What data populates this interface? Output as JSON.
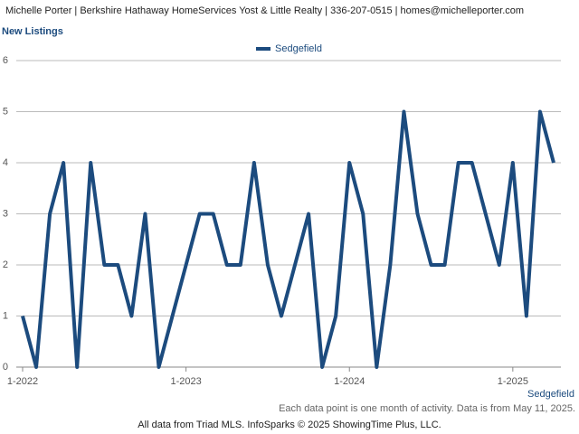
{
  "header": "Michelle Porter | Berkshire Hathaway HomeServices Yost & Little Realty | 336-207-0515 | homes@michelleporter.com",
  "chart_data": {
    "type": "line",
    "title": "New Listings",
    "categories": [
      "1-2022",
      null,
      null,
      null,
      null,
      null,
      null,
      null,
      null,
      null,
      null,
      null,
      "1-2023",
      null,
      null,
      null,
      null,
      null,
      null,
      null,
      null,
      null,
      null,
      null,
      "1-2024",
      null,
      null,
      null,
      null,
      null,
      null,
      null,
      null,
      null,
      null,
      null,
      "1-2025",
      null,
      null,
      null
    ],
    "series": [
      {
        "name": "Sedgefield",
        "color": "#1c4b7e",
        "values": [
          1,
          0,
          3,
          4,
          0,
          4,
          2,
          2,
          1,
          3,
          0,
          1,
          2,
          3,
          3,
          2,
          2,
          4,
          2,
          1,
          2,
          3,
          0,
          1,
          4,
          3,
          0,
          2,
          5,
          3,
          2,
          2,
          4,
          4,
          3,
          2,
          4,
          1,
          5,
          4
        ]
      }
    ],
    "ylim": [
      0,
      6
    ],
    "yticks": [
      0,
      1,
      2,
      3,
      4,
      5,
      6
    ],
    "grid": true
  },
  "note": "Each data point is one month of activity. Data is from May 11, 2025.",
  "footer": "All data from Triad MLS. InfoSparks © 2025 ShowingTime Plus, LLC."
}
